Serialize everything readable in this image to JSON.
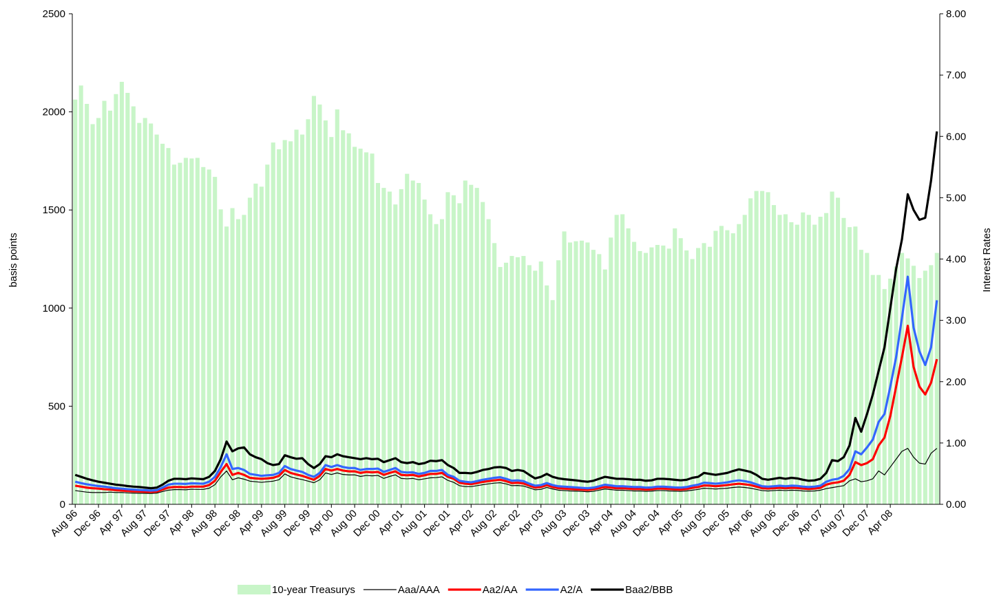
{
  "chart_data": {
    "type": "bar",
    "y_label": "basis points",
    "y2_label": "Interest Rates",
    "categories": [
      "Aug 96",
      null,
      null,
      null,
      "Dec 96",
      null,
      null,
      null,
      "Apr 97",
      null,
      null,
      null,
      "Aug 97",
      null,
      null,
      null,
      "Dec 97",
      null,
      null,
      null,
      "Apr 98",
      null,
      null,
      null,
      "Aug 98",
      null,
      null,
      null,
      "Dec 98",
      null,
      null,
      null,
      "Apr 99",
      null,
      null,
      null,
      "Aug 99",
      null,
      null,
      null,
      "Dec 99",
      null,
      null,
      null,
      "Apr 00",
      null,
      null,
      null,
      "Aug 00",
      null,
      null,
      null,
      "Dec 00",
      null,
      null,
      null,
      "Apr 01",
      null,
      null,
      null,
      "Aug 01",
      null,
      null,
      null,
      "Dec 01",
      null,
      null,
      null,
      "Apr 02",
      null,
      null,
      null,
      "Aug 02",
      null,
      null,
      null,
      "Dec 02",
      null,
      null,
      null,
      "Apr 03",
      null,
      null,
      null,
      "Aug 03",
      null,
      null,
      null,
      "Dec 03",
      null,
      null,
      null,
      "Apr 04",
      null,
      null,
      null,
      "Aug 04",
      null,
      null,
      null,
      "Dec 04",
      null,
      null,
      null,
      "Apr 05",
      null,
      null,
      null,
      "Aug 05",
      null,
      null,
      null,
      "Dec 05",
      null,
      null,
      null,
      "Apr 06",
      null,
      null,
      null,
      "Aug 06",
      null,
      null,
      null,
      "Dec 06",
      null,
      null,
      null,
      "Apr 07",
      null,
      null,
      null,
      "Aug 07",
      null,
      null,
      null,
      "Dec 07",
      null,
      null,
      null,
      "Apr 08",
      null,
      null,
      null,
      null,
      null,
      null,
      null,
      null
    ],
    "ylim": [
      0,
      2500
    ],
    "yticks": [
      0,
      500,
      1000,
      1500,
      2000,
      2500
    ],
    "y2lim": [
      0,
      8
    ],
    "y2ticks": [
      {
        "value": 0,
        "label": "0.00"
      },
      {
        "value": 1,
        "label": "1.00"
      },
      {
        "value": 2,
        "label": "2.00"
      },
      {
        "value": 3,
        "label": "3.00"
      },
      {
        "value": 4,
        "label": "4.00"
      },
      {
        "value": 5,
        "label": "5.00"
      },
      {
        "value": 6,
        "label": "6.00"
      },
      {
        "value": 7,
        "label": "7.00"
      },
      {
        "value": 8,
        "label": "8.00"
      }
    ],
    "series": [
      {
        "name": "10-year Treasurys",
        "type": "bar",
        "axis": "y2",
        "color": "#c8f5c8",
        "values": [
          6.6,
          6.83,
          6.53,
          6.2,
          6.3,
          6.58,
          6.42,
          6.69,
          6.89,
          6.71,
          6.49,
          6.22,
          6.3,
          6.21,
          6.03,
          5.88,
          5.81,
          5.54,
          5.57,
          5.65,
          5.64,
          5.65,
          5.5,
          5.46,
          5.34,
          4.81,
          4.53,
          4.83,
          4.65,
          4.72,
          5.0,
          5.23,
          5.18,
          5.54,
          5.9,
          5.79,
          5.94,
          5.92,
          6.11,
          6.03,
          6.28,
          6.66,
          6.52,
          6.26,
          5.99,
          6.44,
          6.1,
          6.05,
          5.83,
          5.8,
          5.74,
          5.72,
          5.24,
          5.16,
          5.1,
          4.89,
          5.14,
          5.39,
          5.28,
          5.24,
          4.97,
          4.73,
          4.57,
          4.65,
          5.09,
          5.04,
          4.91,
          5.28,
          5.21,
          5.16,
          4.93,
          4.65,
          4.26,
          3.87,
          3.94,
          4.05,
          4.03,
          4.05,
          3.9,
          3.81,
          3.96,
          3.57,
          3.33,
          3.98,
          4.45,
          4.27,
          4.29,
          4.3,
          4.27,
          4.15,
          4.08,
          3.83,
          4.35,
          4.72,
          4.73,
          4.5,
          4.28,
          4.13,
          4.1,
          4.19,
          4.23,
          4.22,
          4.17,
          4.5,
          4.34,
          4.14,
          4.0,
          4.18,
          4.26,
          4.2,
          4.46,
          4.54,
          4.47,
          4.42,
          4.57,
          4.72,
          4.99,
          5.11,
          5.11,
          5.09,
          4.88,
          4.72,
          4.73,
          4.6,
          4.56,
          4.76,
          4.72,
          4.56,
          4.69,
          4.75,
          5.1,
          5.0,
          4.67,
          4.52,
          4.53,
          4.15,
          4.1,
          3.74,
          3.74,
          3.51,
          3.68,
          3.88,
          4.1,
          4.01,
          3.89,
          3.69,
          3.81,
          3.9,
          4.1
        ]
      },
      {
        "name": "Aaa/AAA",
        "type": "line",
        "color": "#000000",
        "line_width": 1.2,
        "values": [
          70,
          66,
          62,
          60,
          60,
          60,
          62,
          60,
          60,
          58,
          57,
          56,
          56,
          55,
          57,
          65,
          72,
          75,
          75,
          74,
          77,
          76,
          76,
          82,
          100,
          140,
          170,
          125,
          135,
          128,
          118,
          115,
          112,
          115,
          118,
          125,
          155,
          140,
          132,
          126,
          118,
          110,
          125,
          160,
          152,
          160,
          152,
          150,
          150,
          142,
          147,
          145,
          147,
          132,
          142,
          150,
          132,
          130,
          132,
          125,
          130,
          135,
          136,
          140,
          122,
          112,
          95,
          90,
          90,
          95,
          100,
          104,
          108,
          110,
          104,
          95,
          96,
          93,
          84,
          74,
          76,
          86,
          78,
          72,
          70,
          68,
          67,
          66,
          64,
          66,
          72,
          78,
          75,
          72,
          72,
          70,
          68,
          68,
          66,
          67,
          70,
          70,
          68,
          67,
          66,
          68,
          72,
          76,
          82,
          80,
          78,
          80,
          82,
          86,
          88,
          86,
          82,
          76,
          70,
          68,
          70,
          72,
          70,
          72,
          71,
          68,
          67,
          68,
          72,
          80,
          85,
          90,
          95,
          120,
          130,
          115,
          120,
          130,
          170,
          150,
          190,
          230,
          270,
          285,
          240,
          210,
          205,
          260,
          285
        ]
      },
      {
        "name": "Aa2/AA",
        "type": "line",
        "color": "#ff0000",
        "line_width": 3.2,
        "values": [
          95,
          90,
          85,
          82,
          80,
          77,
          75,
          72,
          70,
          68,
          66,
          65,
          64,
          63,
          65,
          75,
          85,
          88,
          88,
          87,
          90,
          90,
          90,
          98,
          120,
          165,
          205,
          150,
          160,
          150,
          135,
          132,
          130,
          132,
          135,
          145,
          175,
          160,
          152,
          145,
          135,
          125,
          145,
          180,
          172,
          180,
          172,
          168,
          168,
          160,
          165,
          163,
          165,
          150,
          160,
          168,
          150,
          148,
          150,
          142,
          148,
          155,
          155,
          160,
          140,
          130,
          110,
          105,
          103,
          108,
          114,
          118,
          122,
          125,
          118,
          108,
          110,
          106,
          95,
          85,
          88,
          98,
          88,
          82,
          80,
          78,
          76,
          75,
          73,
          76,
          82,
          88,
          85,
          82,
          82,
          80,
          78,
          78,
          75,
          76,
          80,
          80,
          78,
          76,
          75,
          78,
          84,
          88,
          96,
          95,
          92,
          95,
          98,
          102,
          105,
          102,
          98,
          90,
          82,
          80,
          82,
          84,
          82,
          84,
          83,
          80,
          78,
          80,
          84,
          100,
          108,
          112,
          120,
          150,
          215,
          200,
          210,
          230,
          300,
          340,
          450,
          600,
          750,
          910,
          700,
          600,
          560,
          620,
          740
        ]
      },
      {
        "name": "A2/A",
        "type": "line",
        "color": "#3366ff",
        "line_width": 3.2,
        "values": [
          115,
          108,
          102,
          97,
          93,
          90,
          86,
          82,
          80,
          77,
          75,
          73,
          72,
          70,
          72,
          85,
          100,
          105,
          105,
          104,
          107,
          106,
          105,
          115,
          140,
          190,
          255,
          180,
          185,
          175,
          155,
          150,
          145,
          148,
          150,
          160,
          195,
          180,
          172,
          165,
          150,
          140,
          160,
          200,
          190,
          200,
          190,
          185,
          185,
          175,
          180,
          180,
          182,
          165,
          175,
          185,
          165,
          162,
          163,
          155,
          160,
          170,
          170,
          175,
          150,
          140,
          120,
          115,
          112,
          118,
          125,
          130,
          135,
          138,
          130,
          120,
          122,
          118,
          105,
          95,
          98,
          108,
          98,
          92,
          90,
          88,
          86,
          84,
          82,
          85,
          92,
          100,
          96,
          92,
          92,
          90,
          88,
          88,
          85,
          86,
          90,
          90,
          88,
          86,
          85,
          88,
          95,
          100,
          110,
          108,
          105,
          108,
          112,
          118,
          122,
          118,
          112,
          102,
          92,
          90,
          92,
          95,
          92,
          95,
          94,
          90,
          88,
          90,
          95,
          115,
          125,
          130,
          145,
          180,
          270,
          255,
          290,
          330,
          420,
          460,
          600,
          750,
          950,
          1160,
          900,
          780,
          710,
          800,
          1040
        ]
      },
      {
        "name": "Baa2/BBB",
        "type": "line",
        "color": "#000000",
        "line_width": 3.2,
        "values": [
          150,
          140,
          130,
          122,
          115,
          110,
          105,
          100,
          97,
          93,
          90,
          88,
          85,
          82,
          85,
          100,
          120,
          130,
          130,
          128,
          132,
          130,
          128,
          140,
          170,
          230,
          320,
          270,
          285,
          290,
          255,
          240,
          230,
          210,
          200,
          205,
          250,
          240,
          232,
          235,
          205,
          185,
          205,
          245,
          240,
          255,
          245,
          240,
          235,
          230,
          235,
          230,
          232,
          215,
          225,
          235,
          215,
          210,
          215,
          205,
          210,
          222,
          220,
          225,
          200,
          185,
          160,
          160,
          158,
          165,
          175,
          180,
          188,
          190,
          185,
          170,
          175,
          170,
          150,
          132,
          140,
          155,
          140,
          132,
          128,
          125,
          122,
          118,
          115,
          120,
          130,
          140,
          135,
          130,
          130,
          128,
          125,
          125,
          120,
          122,
          130,
          130,
          128,
          125,
          122,
          125,
          135,
          140,
          160,
          155,
          150,
          155,
          160,
          170,
          178,
          172,
          165,
          150,
          130,
          125,
          130,
          135,
          130,
          135,
          132,
          125,
          120,
          122,
          130,
          160,
          225,
          220,
          240,
          300,
          440,
          370,
          460,
          560,
          680,
          800,
          1000,
          1200,
          1350,
          1580,
          1500,
          1450,
          1460,
          1650,
          1900
        ]
      }
    ]
  }
}
